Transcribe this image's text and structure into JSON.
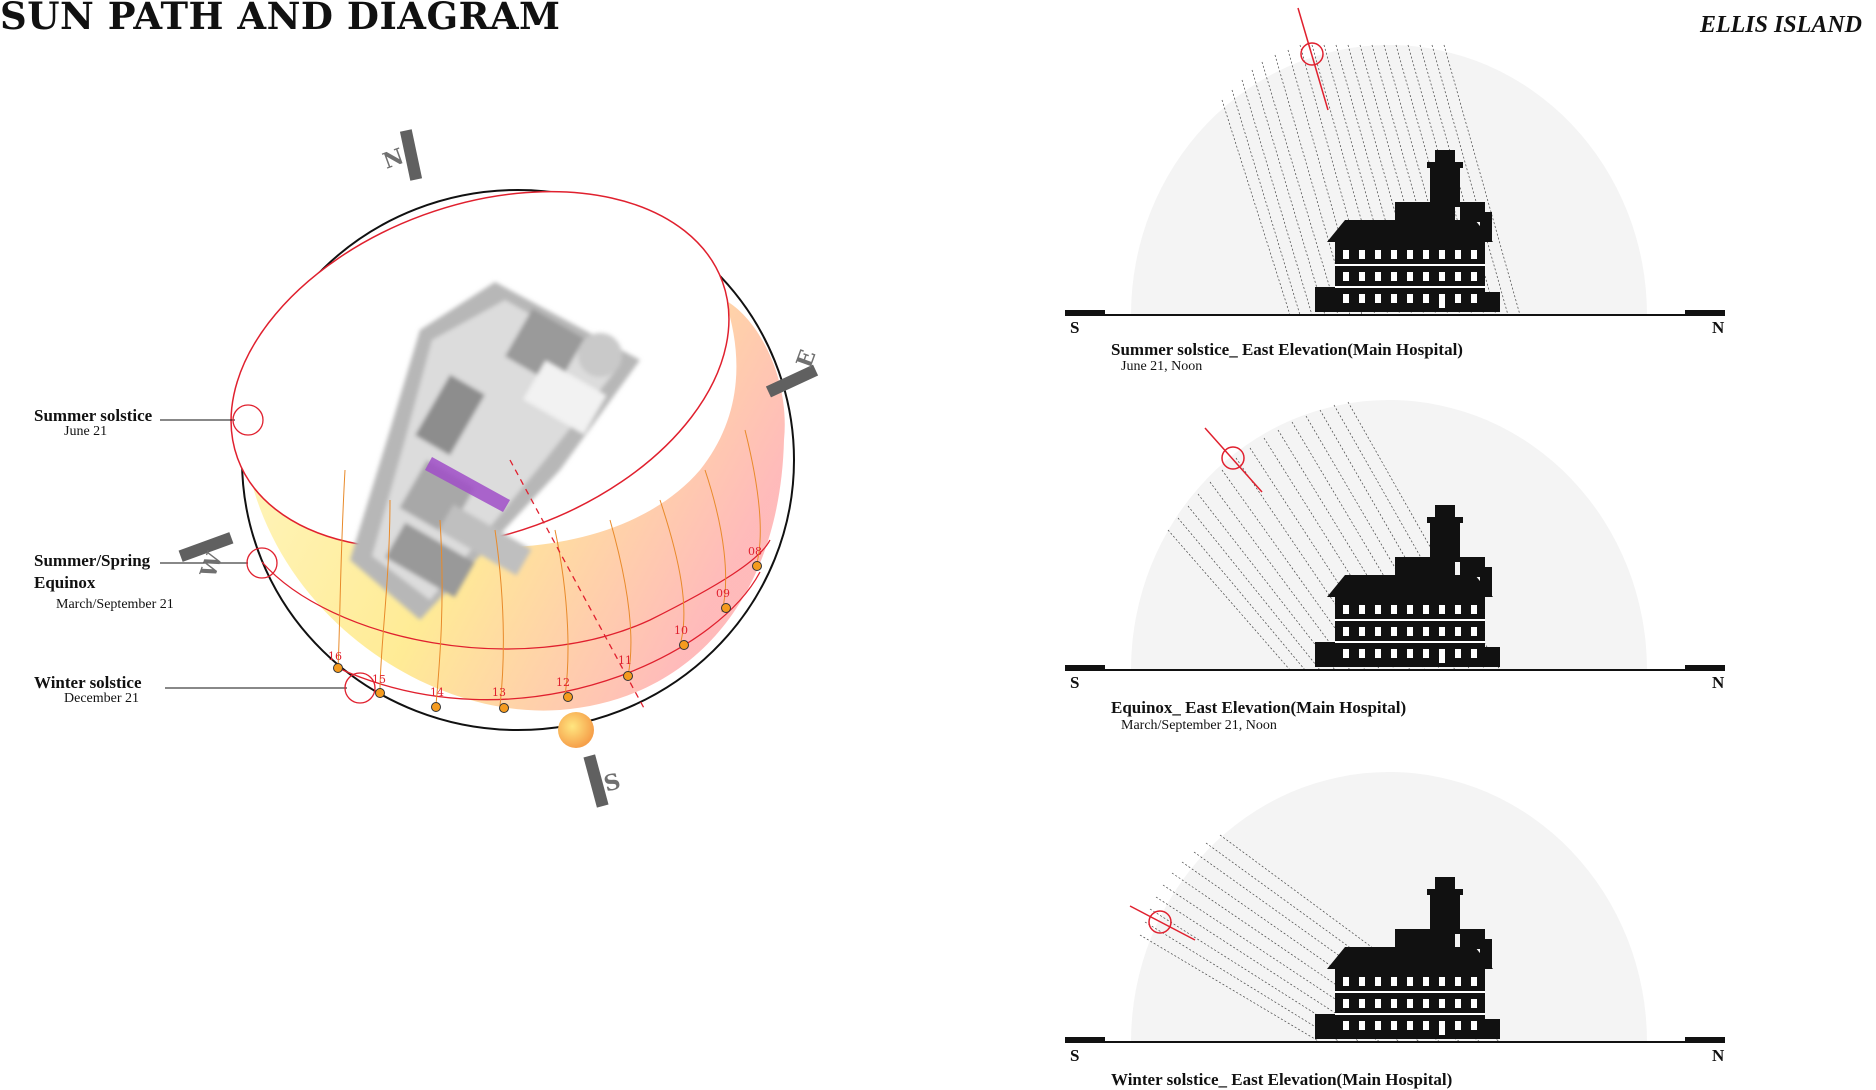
{
  "header": {
    "title": "SUN PATH AND DIAGRAM",
    "location": "ELLIS ISLAND"
  },
  "compass": {
    "north": "N",
    "east": "E",
    "south": "S",
    "west": "W"
  },
  "sunpath_labels": [
    {
      "name": "Summer solstice",
      "date": "June 21"
    },
    {
      "name": "Summer/Spring\nEquinox",
      "date": "March/September 21"
    },
    {
      "name": "Winter solstice",
      "date": "December 21"
    }
  ],
  "hour_marks": [
    "16",
    "15",
    "14",
    "13",
    "12",
    "11",
    "10",
    "09",
    "08"
  ],
  "elevations": [
    {
      "caption": "Summer solstice_ East Elevation(Main Hospital)",
      "date": "June 21, Noon",
      "left": "S",
      "right": "N"
    },
    {
      "caption": "Equinox_ East Elevation(Main Hospital)",
      "date": "March/September 21, Noon",
      "left": "S",
      "right": "N"
    },
    {
      "caption": "Winter solstice_ East Elevation(Main Hospital)",
      "date": "",
      "left": "S",
      "right": "N"
    }
  ],
  "colors": {
    "sun_path_red": "#e0202e",
    "dome_fill": "#fff3a8",
    "building_highlight": "#a04ec8",
    "marker": "#f59b1e"
  }
}
